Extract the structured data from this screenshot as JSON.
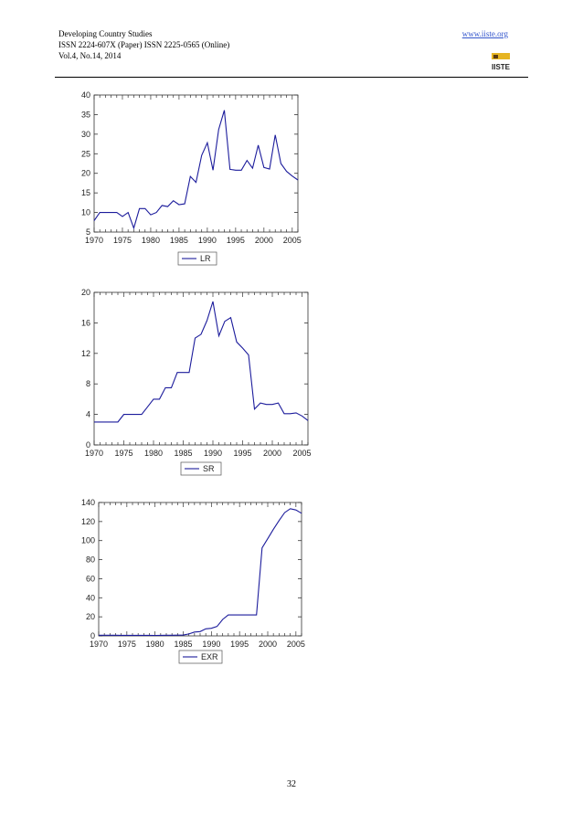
{
  "header": {
    "journal": "Developing Country Studies",
    "issn": "ISSN 2224-607X (Paper) ISSN 2225-0565 (Online)",
    "volume": "Vol.4, No.14, 2014",
    "url": "www.iiste.org",
    "logo_text": "IISTE"
  },
  "page_number": "32",
  "chart_data": [
    {
      "type": "line",
      "legend": "LR",
      "legend_placement": "bottom",
      "xlim": [
        1970,
        2006
      ],
      "ylim": [
        5,
        40
      ],
      "xticks": [
        1970,
        1975,
        1980,
        1985,
        1990,
        1995,
        2000,
        2005
      ],
      "yticks": [
        5,
        10,
        15,
        20,
        25,
        30,
        35,
        40
      ],
      "grid": false,
      "color": "#1c1c9c",
      "x": [
        1970,
        1971,
        1972,
        1973,
        1974,
        1975,
        1976,
        1977,
        1978,
        1979,
        1980,
        1981,
        1982,
        1983,
        1984,
        1985,
        1986,
        1987,
        1988,
        1989,
        1990,
        1991,
        1992,
        1993,
        1994,
        1995,
        1996,
        1997,
        1998,
        1999,
        2000,
        2001,
        2002,
        2003,
        2004,
        2005,
        2006
      ],
      "y": [
        7.9,
        10,
        10,
        10,
        10,
        9,
        10,
        6,
        11,
        11,
        9.4,
        10,
        11.8,
        11.5,
        13,
        12,
        12.2,
        19.2,
        17.7,
        24.6,
        27.8,
        20.8,
        31.2,
        36.1,
        21,
        20.8,
        20.8,
        23.3,
        21.3,
        27.2,
        21.5,
        21.1,
        29.8,
        22.5,
        20.5,
        19.3,
        18.3
      ]
    },
    {
      "type": "line",
      "legend": "SR",
      "legend_placement": "bottom",
      "xlim": [
        1970,
        2006
      ],
      "ylim": [
        0,
        20
      ],
      "xticks": [
        1970,
        1975,
        1980,
        1985,
        1990,
        1995,
        2000,
        2005
      ],
      "yticks": [
        0,
        4,
        8,
        12,
        16,
        20
      ],
      "grid": false,
      "color": "#1c1c9c",
      "x": [
        1970,
        1971,
        1972,
        1973,
        1974,
        1975,
        1976,
        1977,
        1978,
        1979,
        1980,
        1981,
        1982,
        1983,
        1984,
        1985,
        1986,
        1987,
        1988,
        1989,
        1990,
        1991,
        1992,
        1993,
        1994,
        1995,
        1996,
        1997,
        1998,
        1999,
        2000,
        2001,
        2002,
        2003,
        2004,
        2005,
        2006
      ],
      "y": [
        3,
        3,
        3,
        3,
        3,
        4,
        4,
        4,
        4,
        5,
        6,
        6,
        7.5,
        7.5,
        9.5,
        9.5,
        9.5,
        14,
        14.5,
        16.3,
        18.8,
        14.3,
        16.2,
        16.7,
        13.5,
        12.7,
        11.8,
        4.7,
        5.5,
        5.3,
        5.3,
        5.5,
        4.1,
        4.1,
        4.2,
        3.8,
        3.2
      ]
    },
    {
      "type": "line",
      "legend": "EXR",
      "legend_placement": "bottom",
      "xlim": [
        1970,
        2006
      ],
      "ylim": [
        0,
        140
      ],
      "xticks": [
        1970,
        1975,
        1980,
        1985,
        1990,
        1995,
        2000,
        2005
      ],
      "yticks": [
        0,
        20,
        40,
        60,
        80,
        100,
        120,
        140
      ],
      "grid": false,
      "color": "#1c1c9c",
      "x": [
        1970,
        1971,
        1972,
        1973,
        1974,
        1975,
        1976,
        1977,
        1978,
        1979,
        1980,
        1981,
        1982,
        1983,
        1984,
        1985,
        1986,
        1987,
        1988,
        1989,
        1990,
        1991,
        1992,
        1993,
        1994,
        1995,
        1996,
        1997,
        1998,
        1999,
        2000,
        2001,
        2002,
        2003,
        2004,
        2005,
        2006
      ],
      "y": [
        0.7,
        0.7,
        0.7,
        0.7,
        0.6,
        0.6,
        0.6,
        0.6,
        0.6,
        0.6,
        0.5,
        0.6,
        0.7,
        0.7,
        0.8,
        0.9,
        2,
        4,
        4.5,
        7.4,
        8,
        9.9,
        17.3,
        22,
        22,
        22,
        22,
        22,
        22,
        92.3,
        102,
        111.9,
        120.9,
        129.4,
        133.5,
        132.1,
        128.7
      ]
    }
  ]
}
